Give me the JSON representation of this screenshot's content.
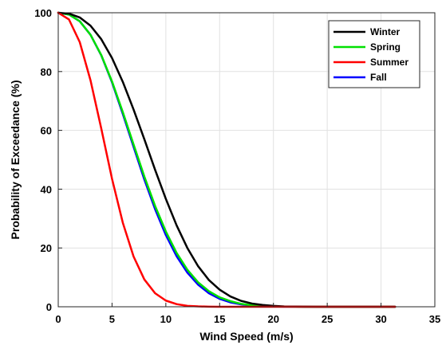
{
  "chart_data": {
    "type": "line",
    "xlabel": "Wind Speed (m/s)",
    "ylabel": "Probability of Exceedance (%)",
    "xlim": [
      0,
      35
    ],
    "ylim": [
      0,
      100
    ],
    "xticks": [
      "0",
      "5",
      "10",
      "15",
      "20",
      "25",
      "30",
      "35"
    ],
    "yticks": [
      "0",
      "20",
      "40",
      "60",
      "80",
      "100"
    ],
    "grid": true,
    "legend_position": "top-right",
    "x": [
      0,
      1,
      2,
      3,
      4,
      5,
      6,
      7,
      8,
      9,
      10,
      11,
      12,
      13,
      14,
      15,
      16,
      17,
      18,
      19,
      20,
      21,
      22,
      23,
      24,
      25,
      26,
      27,
      28,
      29,
      30,
      31.3
    ],
    "series": [
      {
        "name": "Winter",
        "color": "#000000",
        "values": [
          100,
          99.7,
          98.4,
          95.6,
          91.0,
          84.6,
          76.5,
          67.1,
          57.0,
          46.6,
          36.7,
          27.7,
          20.0,
          13.8,
          9.1,
          5.8,
          3.5,
          2.0,
          1.1,
          0.6,
          0.3,
          0.1,
          0.07,
          0.03,
          0.01,
          0,
          0,
          0,
          0,
          0,
          0,
          0
        ]
      },
      {
        "name": "Spring",
        "color": "#00e000",
        "values": [
          100,
          99.4,
          97.1,
          92.5,
          85.6,
          76.6,
          66.2,
          55.2,
          44.3,
          34.3,
          25.6,
          18.3,
          12.6,
          8.3,
          5.3,
          3.2,
          1.9,
          1.0,
          0.5,
          0.3,
          0.1,
          0.06,
          0.03,
          0.01,
          0,
          0,
          0,
          0,
          0,
          0,
          0,
          0
        ]
      },
      {
        "name": "Summer",
        "color": "#ff0000",
        "values": [
          100,
          97.7,
          90.0,
          77.0,
          60.6,
          43.5,
          28.6,
          17.1,
          9.3,
          4.6,
          2.1,
          0.9,
          0.3,
          0.12,
          0.04,
          0.01,
          0,
          0,
          0,
          0,
          0,
          0,
          0,
          0,
          0,
          0,
          0,
          0,
          0,
          0,
          0,
          0
        ]
      },
      {
        "name": "Fall",
        "color": "#0000ff",
        "values": [
          100,
          99.4,
          97.1,
          92.5,
          85.5,
          76.3,
          65.6,
          54.4,
          43.3,
          33.2,
          24.4,
          17.2,
          11.6,
          7.5,
          4.6,
          2.7,
          1.5,
          0.8,
          0.4,
          0.2,
          0.1,
          0.04,
          0.02,
          0.01,
          0,
          0,
          0,
          0,
          0,
          0,
          0,
          0
        ]
      }
    ]
  }
}
